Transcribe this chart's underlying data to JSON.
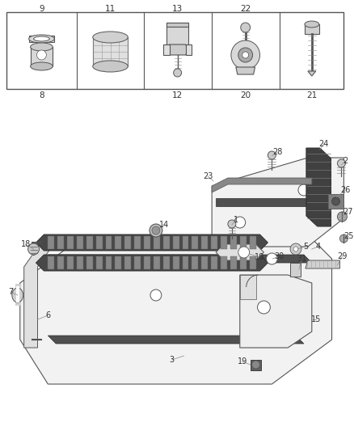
{
  "bg_color": "#ffffff",
  "lc": "#555555",
  "tc": "#333333",
  "fig_w": 4.38,
  "fig_h": 5.33,
  "dpi": 100
}
